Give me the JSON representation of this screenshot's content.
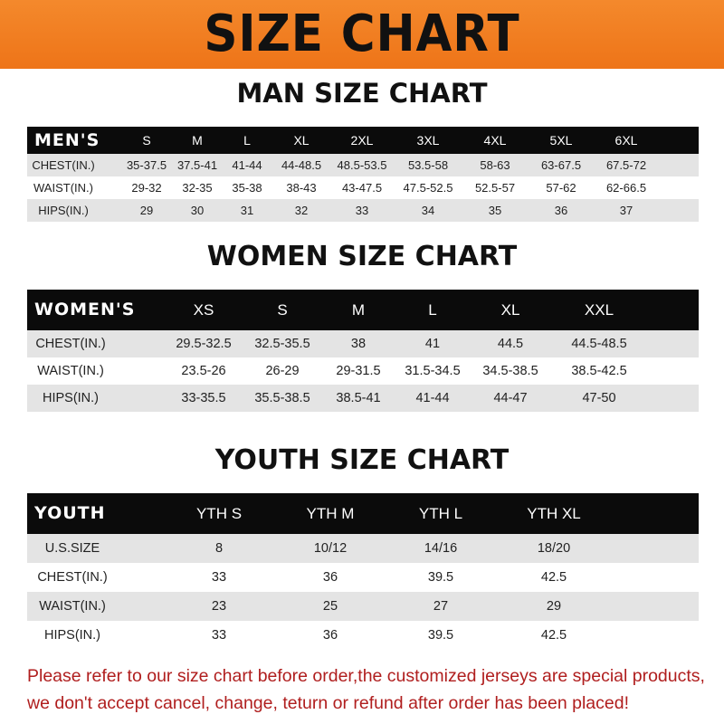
{
  "banner": {
    "title": "SIZE CHART",
    "color": "#f07a1e"
  },
  "men": {
    "title": "MAN SIZE CHART",
    "header": "MEN'S",
    "sizes": [
      "S",
      "M",
      "L",
      "XL",
      "2XL",
      "3XL",
      "4XL",
      "5XL",
      "6XL"
    ],
    "rows": [
      {
        "label": "CHEST(IN.)",
        "values": [
          "35-37.5",
          "37.5-41",
          "41-44",
          "44-48.5",
          "48.5-53.5",
          "53.5-58",
          "58-63",
          "63-67.5",
          "67.5-72"
        ]
      },
      {
        "label": "WAIST(IN.)",
        "values": [
          "29-32",
          "32-35",
          "35-38",
          "38-43",
          "43-47.5",
          "47.5-52.5",
          "52.5-57",
          "57-62",
          "62-66.5"
        ]
      },
      {
        "label": "HIPS(IN.)",
        "values": [
          "29",
          "30",
          "31",
          "32",
          "33",
          "34",
          "35",
          "36",
          "37"
        ]
      }
    ]
  },
  "women": {
    "title": "WOMEN SIZE CHART",
    "header": "WOMEN'S",
    "sizes": [
      "XS",
      "S",
      "M",
      "L",
      "XL",
      "XXL"
    ],
    "rows": [
      {
        "label": "CHEST(IN.)",
        "values": [
          "29.5-32.5",
          "32.5-35.5",
          "38",
          "41",
          "44.5",
          "44.5-48.5"
        ]
      },
      {
        "label": "WAIST(IN.)",
        "values": [
          "23.5-26",
          "26-29",
          "29-31.5",
          "31.5-34.5",
          "34.5-38.5",
          "38.5-42.5"
        ]
      },
      {
        "label": "HIPS(IN.)",
        "values": [
          "33-35.5",
          "35.5-38.5",
          "38.5-41",
          "41-44",
          "44-47",
          "47-50"
        ]
      }
    ]
  },
  "youth": {
    "title": "YOUTH SIZE CHART",
    "header": "YOUTH",
    "sizes": [
      "YTH S",
      "YTH M",
      "YTH L",
      "YTH XL"
    ],
    "rows": [
      {
        "label": "U.S.SIZE",
        "values": [
          "8",
          "10/12",
          "14/16",
          "18/20"
        ]
      },
      {
        "label": "CHEST(IN.)",
        "values": [
          "33",
          "36",
          "39.5",
          "42.5"
        ]
      },
      {
        "label": "WAIST(IN.)",
        "values": [
          "23",
          "25",
          "27",
          "29"
        ]
      },
      {
        "label": "HIPS(IN.)",
        "values": [
          "33",
          "36",
          "39.5",
          "42.5"
        ]
      }
    ]
  },
  "notice": {
    "line1": "Please refer to our size chart before order,the customized jerseys are special products,",
    "line2": "we don't accept cancel, change, teturn or refund after order has been placed!",
    "color": "#b01e1e"
  }
}
